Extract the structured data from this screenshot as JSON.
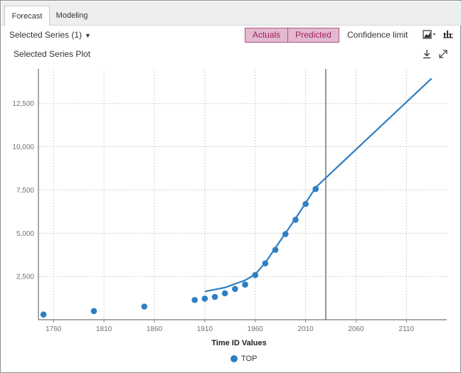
{
  "tabs": [
    {
      "label": "Forecast",
      "active": true
    },
    {
      "label": "Modeling",
      "active": false
    }
  ],
  "toolbar": {
    "series_selector": "Selected Series (1)",
    "actuals_label": "Actuals",
    "predicted_label": "Predicted",
    "confidence_label": "Confidence limit",
    "chart_type_icon": "area-chart-icon",
    "settings_icon": "bar-chart-options-icon"
  },
  "plot": {
    "title": "Selected Series Plot",
    "download_icon": "download-icon",
    "expand_icon": "expand-icon"
  },
  "colors": {
    "series": "#2e7ec4",
    "toggle_bg": "#e2b9cf",
    "toggle_border": "#b2517f",
    "toggle_text": "#a01f5f"
  },
  "chart_data": {
    "type": "line",
    "xlabel": "Time ID Values",
    "ylabel": "",
    "xlim": [
      1745,
      2150
    ],
    "ylim": [
      0,
      14500
    ],
    "x_ticks": [
      1760,
      1810,
      1860,
      1910,
      1960,
      2010,
      2060,
      2110
    ],
    "x_tick_labels": [
      "1760",
      "1810",
      "1860",
      "1910",
      "1960",
      "2010",
      "2060",
      "2110"
    ],
    "y_ticks": [
      2500,
      5000,
      7500,
      10000,
      12500
    ],
    "y_tick_labels": [
      "2,500",
      "5,000",
      "7,500",
      "10,000",
      "12,500"
    ],
    "grid": true,
    "forecast_start": 2030,
    "legend": {
      "position": "bottom",
      "entries": [
        "TOP"
      ]
    },
    "series": [
      {
        "name": "TOP",
        "kind": "actuals",
        "points": [
          {
            "x": 1750,
            "y": 300
          },
          {
            "x": 1800,
            "y": 500
          },
          {
            "x": 1850,
            "y": 760
          },
          {
            "x": 1900,
            "y": 1140
          },
          {
            "x": 1910,
            "y": 1220
          },
          {
            "x": 1920,
            "y": 1320
          },
          {
            "x": 1930,
            "y": 1530
          },
          {
            "x": 1940,
            "y": 1780
          },
          {
            "x": 1950,
            "y": 2030
          },
          {
            "x": 1960,
            "y": 2580
          },
          {
            "x": 1970,
            "y": 3260
          },
          {
            "x": 1980,
            "y": 4040
          },
          {
            "x": 1990,
            "y": 4950
          },
          {
            "x": 2000,
            "y": 5780
          },
          {
            "x": 2010,
            "y": 6690
          },
          {
            "x": 2020,
            "y": 7560
          }
        ]
      },
      {
        "name": "",
        "kind": "predicted",
        "points": [
          {
            "x": 1910,
            "y": 1630
          },
          {
            "x": 1930,
            "y": 1860
          },
          {
            "x": 1950,
            "y": 2280
          },
          {
            "x": 1960,
            "y": 2620
          },
          {
            "x": 1970,
            "y": 3300
          },
          {
            "x": 1980,
            "y": 4150
          },
          {
            "x": 1990,
            "y": 5000
          },
          {
            "x": 2000,
            "y": 5850
          },
          {
            "x": 2010,
            "y": 6750
          },
          {
            "x": 2020,
            "y": 7650
          },
          {
            "x": 2030,
            "y": 8200
          },
          {
            "x": 2135,
            "y": 13950
          }
        ]
      }
    ]
  },
  "legend_label": "TOP"
}
